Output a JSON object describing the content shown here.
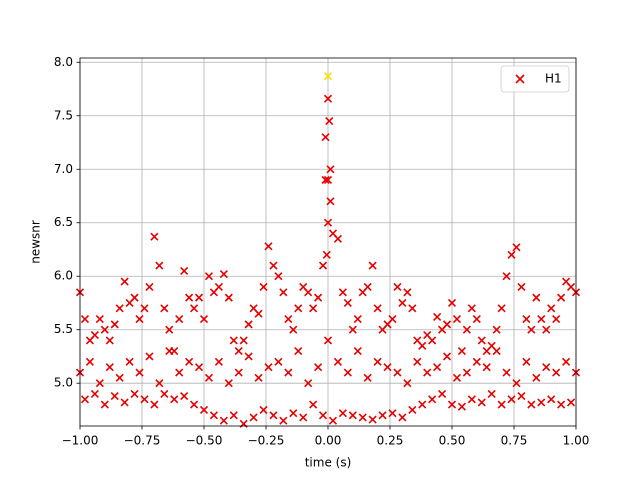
{
  "chart_data": {
    "type": "scatter",
    "xlabel": "time (s)",
    "ylabel": "newsnr",
    "xlim": [
      -1,
      1
    ],
    "ylim": [
      4.6,
      8.04
    ],
    "xticks": [
      {
        "value": -1,
        "label": "−1.00"
      },
      {
        "value": -0.75,
        "label": "−0.75"
      },
      {
        "value": -0.5,
        "label": "−0.50"
      },
      {
        "value": -0.25,
        "label": "−0.25"
      },
      {
        "value": 0,
        "label": "0.00"
      },
      {
        "value": 0.25,
        "label": "0.25"
      },
      {
        "value": 0.5,
        "label": "0.50"
      },
      {
        "value": 0.75,
        "label": "0.75"
      },
      {
        "value": 1,
        "label": "1.00"
      }
    ],
    "yticks": [
      {
        "value": 5,
        "label": "5.0"
      },
      5.5,
      {
        "value": 6,
        "label": "6.0"
      },
      6.5,
      {
        "value": 7,
        "label": "7.0"
      },
      7.5,
      {
        "value": 8,
        "label": "8.0"
      }
    ],
    "grid": true,
    "legend": "upper right",
    "series": [
      {
        "name": "H1",
        "color": "#e60000",
        "x": [
          -1,
          -0.98,
          -0.96,
          -0.94,
          -0.92,
          -0.9,
          -0.88,
          -0.86,
          -0.84,
          -0.82,
          -0.8,
          -0.78,
          -0.76,
          -0.74,
          -0.72,
          -0.7,
          -0.68,
          -0.66,
          -0.64,
          -0.62,
          -0.6,
          -0.58,
          -0.56,
          -0.54,
          -0.52,
          -0.5,
          -0.48,
          -0.46,
          -0.44,
          -0.42,
          -0.4,
          -0.38,
          -0.36,
          -0.34,
          -0.32,
          -0.3,
          -0.28,
          -0.26,
          -0.24,
          -0.22,
          -0.2,
          -0.18,
          -0.16,
          -0.14,
          -0.12,
          -0.1,
          -0.08,
          -0.06,
          -0.04,
          -0.02,
          0,
          0.02,
          0.04,
          0.06,
          0.08,
          0.1,
          0.12,
          0.14,
          0.16,
          0.18,
          0.2,
          0.22,
          0.24,
          0.26,
          0.28,
          0.3,
          0.32,
          0.34,
          0.36,
          0.38,
          0.4,
          0.42,
          0.44,
          0.46,
          0.48,
          0.5,
          0.52,
          0.54,
          0.56,
          0.58,
          0.6,
          0.62,
          0.64,
          0.66,
          0.68,
          0.7,
          0.72,
          0.74,
          0.76,
          0.78,
          0.8,
          0.82,
          0.84,
          0.86,
          0.88,
          0.9,
          0.92,
          0.94,
          0.96,
          0.98,
          1
        ],
        "values": [
          5.85,
          5.6,
          5.4,
          5.45,
          5.6,
          5.5,
          5.4,
          5.55,
          5.7,
          5.95,
          5.75,
          5.8,
          5.6,
          5.7,
          5.9,
          6.37,
          6.1,
          5.7,
          5.5,
          5.3,
          5.6,
          6.05,
          5.8,
          5.7,
          5.8,
          5.6,
          6.0,
          5.85,
          5.9,
          6.02,
          5.8,
          5.4,
          5.3,
          5.4,
          5.55,
          5.7,
          5.65,
          5.9,
          6.28,
          6.1,
          6.0,
          5.85,
          5.6,
          5.5,
          5.7,
          5.9,
          5.85,
          5.7,
          5.8,
          6.1,
          7.66,
          6.4,
          6.35,
          5.85,
          5.75,
          5.5,
          5.6,
          5.85,
          5.9,
          6.1,
          5.7,
          5.5,
          5.55,
          5.6,
          5.9,
          5.75,
          5.85,
          5.7,
          5.4,
          5.35,
          5.45,
          5.4,
          5.62,
          5.5,
          5.55,
          5.75,
          5.6,
          5.3,
          5.5,
          5.7,
          5.6,
          5.4,
          5.3,
          5.35,
          5.5,
          5.7,
          6.0,
          6.2,
          6.27,
          5.9,
          5.6,
          5.5,
          5.8,
          5.6,
          5.5,
          5.7,
          5.6,
          5.8,
          5.95,
          5.9,
          5.85
        ]
      },
      {
        "color": "#e60000",
        "x": [
          -1,
          -0.96,
          -0.92,
          -0.88,
          -0.84,
          -0.8,
          -0.76,
          -0.72,
          -0.68,
          -0.64,
          -0.6,
          -0.56,
          -0.52,
          -0.48,
          -0.44,
          -0.4,
          -0.36,
          -0.32,
          -0.28,
          -0.24,
          -0.2,
          -0.16,
          -0.12,
          -0.08,
          -0.04,
          0,
          0.04,
          0.08,
          0.12,
          0.16,
          0.2,
          0.24,
          0.28,
          0.32,
          0.36,
          0.4,
          0.44,
          0.48,
          0.52,
          0.56,
          0.6,
          0.64,
          0.68,
          0.72,
          0.76,
          0.8,
          0.84,
          0.88,
          0.92,
          0.96,
          1
        ],
        "values": [
          5.1,
          5.2,
          5.0,
          5.15,
          5.05,
          5.2,
          5.1,
          5.25,
          5.0,
          5.3,
          5.1,
          5.2,
          5.15,
          5.05,
          5.2,
          5.0,
          5.1,
          5.25,
          5.05,
          5.15,
          5.2,
          5.1,
          5.3,
          5.0,
          5.15,
          5.4,
          5.2,
          5.1,
          5.3,
          5.05,
          5.2,
          5.15,
          5.1,
          5.0,
          5.2,
          5.1,
          5.15,
          5.25,
          5.05,
          5.1,
          5.2,
          5.15,
          5.3,
          5.1,
          5.0,
          5.2,
          5.05,
          5.15,
          5.1,
          5.2,
          5.1
        ]
      },
      {
        "color": "#e60000",
        "x": [
          -0.98,
          -0.94,
          -0.9,
          -0.86,
          -0.82,
          -0.78,
          -0.74,
          -0.7,
          -0.66,
          -0.62,
          -0.58,
          -0.54,
          -0.5,
          -0.46,
          -0.42,
          -0.38,
          -0.34,
          -0.3,
          -0.26,
          -0.22,
          -0.18,
          -0.14,
          -0.1,
          -0.06,
          -0.02,
          0.02,
          0.06,
          0.1,
          0.14,
          0.18,
          0.22,
          0.26,
          0.3,
          0.34,
          0.38,
          0.42,
          0.46,
          0.5,
          0.54,
          0.58,
          0.62,
          0.66,
          0.7,
          0.74,
          0.78,
          0.82,
          0.86,
          0.9,
          0.94,
          0.98
        ],
        "values": [
          4.85,
          4.9,
          4.8,
          4.88,
          4.82,
          4.9,
          4.85,
          4.8,
          4.9,
          4.85,
          4.88,
          4.8,
          4.75,
          4.7,
          4.65,
          4.7,
          4.62,
          4.68,
          4.75,
          4.7,
          4.65,
          4.72,
          4.68,
          4.8,
          4.7,
          4.65,
          4.72,
          4.7,
          4.68,
          4.66,
          4.7,
          4.72,
          4.68,
          4.75,
          4.8,
          4.85,
          4.9,
          4.8,
          4.78,
          4.85,
          4.82,
          4.9,
          4.8,
          4.85,
          4.88,
          4.8,
          4.82,
          4.85,
          4.8,
          4.82
        ]
      },
      {
        "color": "#e60000",
        "x": [
          -0.01,
          0.01,
          0,
          0,
          -0.005,
          0.005,
          0.01,
          -0.01
        ],
        "values": [
          7.3,
          7.0,
          6.9,
          6.5,
          6.2,
          7.45,
          6.7,
          6.9
        ]
      },
      {
        "color": "#ffe000",
        "x": [
          0
        ],
        "values": [
          7.87
        ]
      }
    ]
  }
}
